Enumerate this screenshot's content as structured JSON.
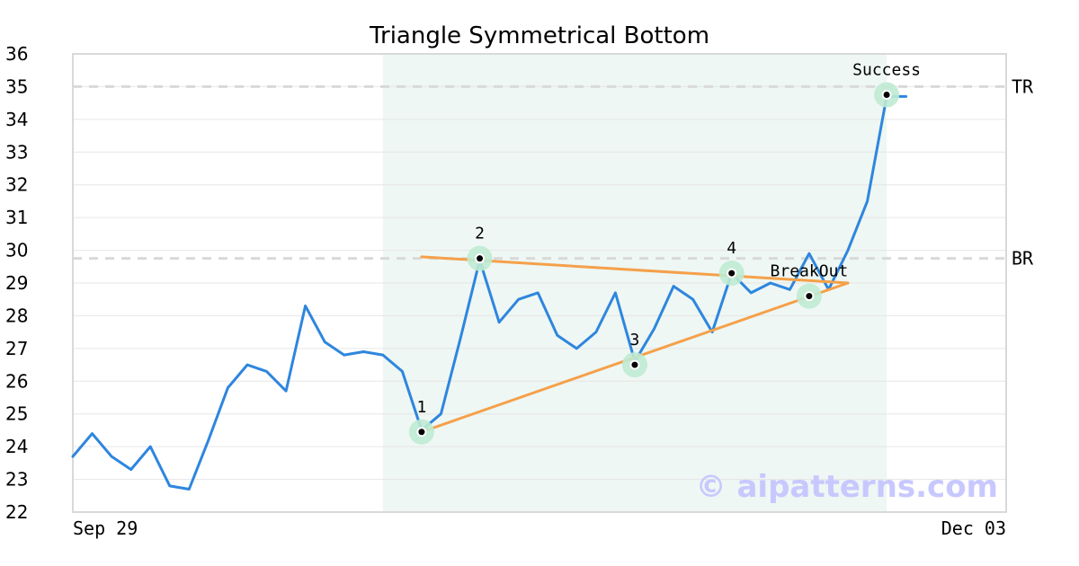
{
  "chart_data": {
    "type": "line",
    "title": "Triangle Symmetrical Bottom",
    "xlabel": "",
    "ylabel": "",
    "x_tick_labels": [
      "Sep 29",
      "Dec 03"
    ],
    "ylim": [
      22,
      36
    ],
    "yticks": [
      22,
      23,
      24,
      25,
      26,
      27,
      28,
      29,
      30,
      31,
      32,
      33,
      34,
      35,
      36
    ],
    "grid": true,
    "legend": "none",
    "series": [
      {
        "color": "#2e86de",
        "values": [
          23.7,
          24.4,
          23.7,
          23.3,
          24.0,
          22.8,
          22.7,
          24.2,
          25.8,
          26.5,
          26.3,
          25.7,
          28.3,
          27.2,
          26.8,
          26.9,
          26.8,
          26.3,
          24.5,
          25.0,
          27.3,
          29.7,
          27.8,
          28.5,
          28.7,
          27.4,
          27.0,
          27.5,
          28.7,
          26.6,
          27.6,
          28.9,
          28.5,
          27.5,
          29.3,
          28.7,
          29.0,
          28.8,
          29.9,
          28.8,
          30.0,
          31.5,
          34.7,
          34.7
        ]
      }
    ],
    "shaded_region": {
      "from_index": 16,
      "to_index": 42,
      "color": "#eef7f3"
    },
    "levels": [
      {
        "label": "TR",
        "value": 35.0
      },
      {
        "label": "BR",
        "value": 29.75
      }
    ],
    "trendlines": [
      {
        "from": [
          18,
          29.8
        ],
        "to": [
          40,
          29.0
        ],
        "color": "#f5a04a"
      },
      {
        "from": [
          18,
          24.45
        ],
        "to": [
          40,
          29.0
        ],
        "color": "#f5a04a"
      }
    ],
    "points": [
      {
        "label": "1",
        "index": 18,
        "value": 24.45
      },
      {
        "label": "2",
        "index": 21,
        "value": 29.75
      },
      {
        "label": "3",
        "index": 29,
        "value": 26.5
      },
      {
        "label": "4",
        "index": 34,
        "value": 29.3
      },
      {
        "label": "BreakOut",
        "index": 38,
        "value": 28.6
      },
      {
        "label": "Success",
        "index": 42,
        "value": 34.75
      }
    ],
    "watermark": "© aipatterns.com",
    "colors": {
      "line": "#2e86de",
      "trend": "#f5a04a",
      "marker_halo": "#bfead3",
      "level_line": "#d9d9d9",
      "grid": "#e6e6e6",
      "frame": "#d9d9d9",
      "watermark": "#c8c8ff"
    }
  }
}
